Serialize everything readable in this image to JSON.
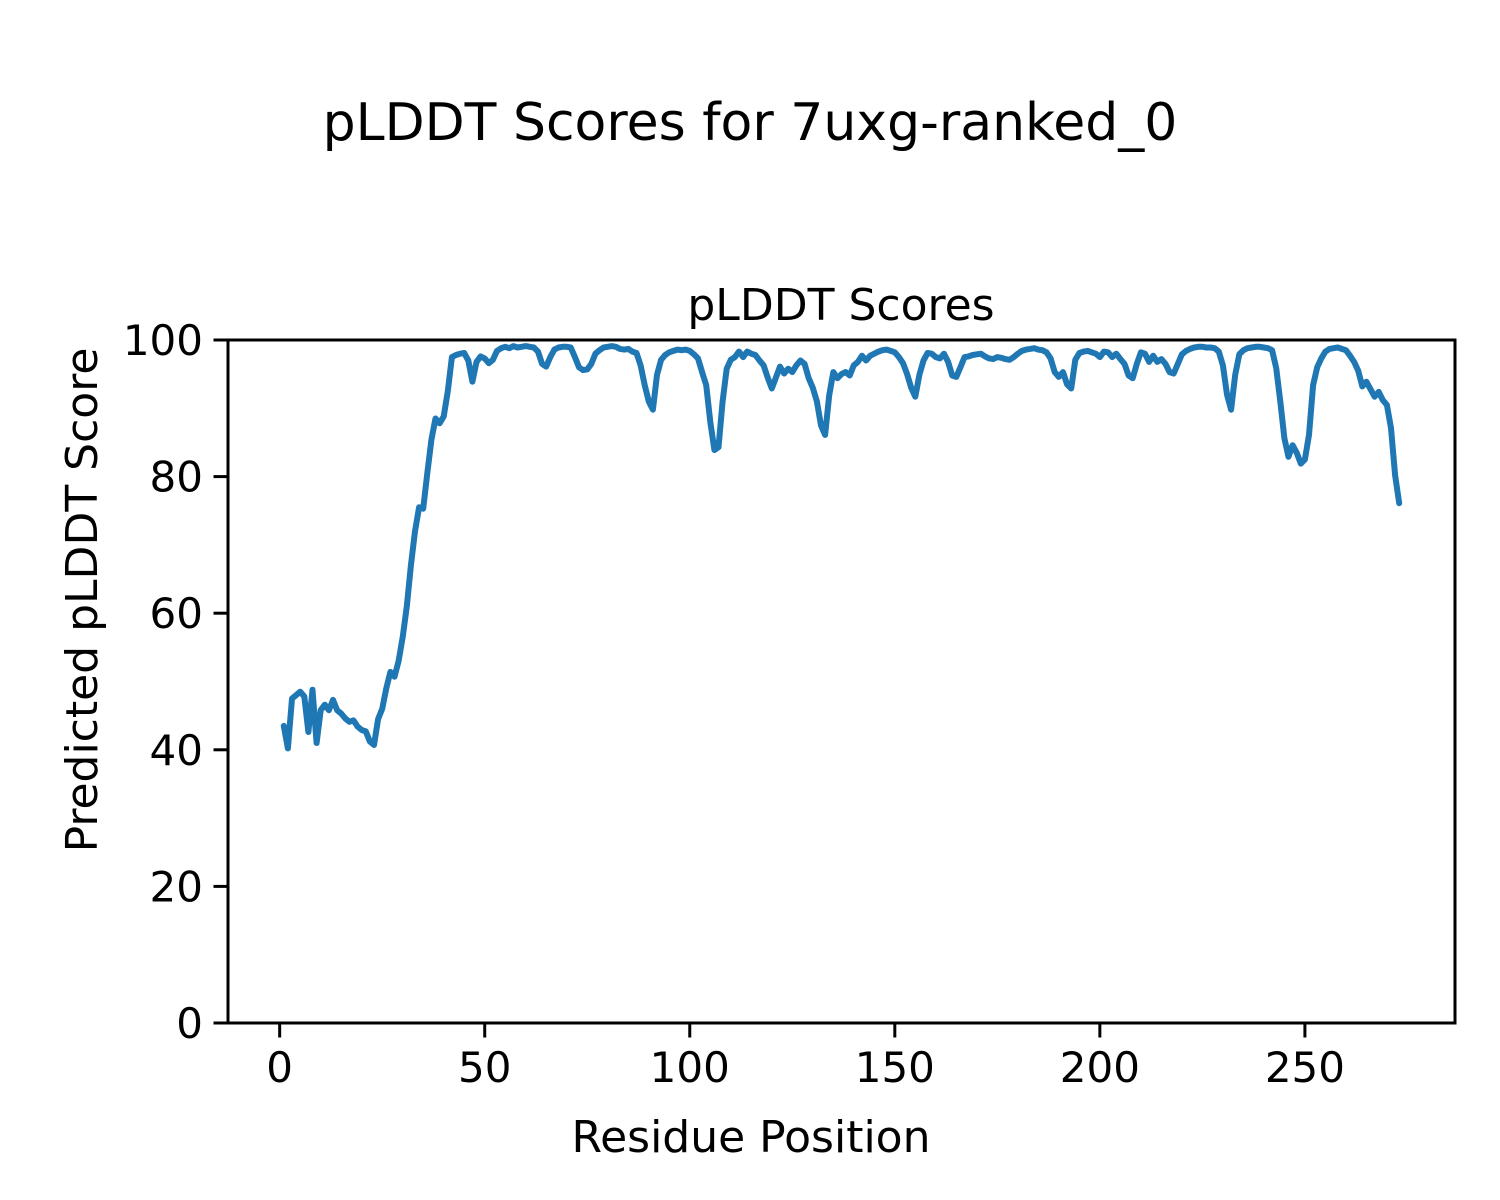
{
  "figure": {
    "background": "#ffffff"
  },
  "chart_data": {
    "type": "line",
    "title": "pLDDT Scores for 7uxg-ranked_0",
    "axes_title": "pLDDT Scores",
    "xlabel": "Residue Position",
    "ylabel": "Predicted pLDDT Score",
    "x_ticks": [
      0,
      50,
      100,
      150,
      200,
      250
    ],
    "y_ticks": [
      0,
      20,
      40,
      60,
      80,
      100
    ],
    "xlim": [
      -12.6,
      286.6
    ],
    "ylim": [
      0,
      100
    ],
    "grid": false,
    "legend": "none",
    "line_color": "#1f77b4",
    "axis_color": "#000000",
    "series": [
      {
        "name": "pLDDT",
        "x_start": 1,
        "x_step": 1,
        "values": [
          43.5,
          40.2,
          47.5,
          48.0,
          48.5,
          47.8,
          42.6,
          48.8,
          41.0,
          45.8,
          46.6,
          45.8,
          47.3,
          45.8,
          45.3,
          44.6,
          44.1,
          44.3,
          43.4,
          42.9,
          42.7,
          41.2,
          40.7,
          44.5,
          46.0,
          49.0,
          51.4,
          50.7,
          53.0,
          56.5,
          61.0,
          67.0,
          72.0,
          75.5,
          75.3,
          80.5,
          85.4,
          88.5,
          87.8,
          88.8,
          92.5,
          97.5,
          97.8,
          98.0,
          98.1,
          97.0,
          93.9,
          96.8,
          97.6,
          97.3,
          96.6,
          97.1,
          98.4,
          98.8,
          99.0,
          98.8,
          99.1,
          98.9,
          99.0,
          99.1,
          99.0,
          98.9,
          98.3,
          96.5,
          96.1,
          97.5,
          98.6,
          98.9,
          99.0,
          99.0,
          98.9,
          97.5,
          96.0,
          95.6,
          95.7,
          96.5,
          98.0,
          98.5,
          98.9,
          99.0,
          99.1,
          99.0,
          98.7,
          98.6,
          98.7,
          98.3,
          98.1,
          96.3,
          93.4,
          91.0,
          89.8,
          94.9,
          97.1,
          97.8,
          98.2,
          98.4,
          98.6,
          98.5,
          98.6,
          98.4,
          97.9,
          97.3,
          95.3,
          93.4,
          88.0,
          83.9,
          84.3,
          91.0,
          95.8,
          97.1,
          97.5,
          98.3,
          97.5,
          98.3,
          98.0,
          97.8,
          97.0,
          96.3,
          94.5,
          92.9,
          94.5,
          96.1,
          95.1,
          95.8,
          95.3,
          96.3,
          97.0,
          96.5,
          94.4,
          93.0,
          91.0,
          87.5,
          86.1,
          91.9,
          95.3,
          94.4,
          95.0,
          95.3,
          94.8,
          96.3,
          96.8,
          97.7,
          97.0,
          97.7,
          98.0,
          98.3,
          98.5,
          98.6,
          98.4,
          98.2,
          97.5,
          96.6,
          95.0,
          93.0,
          91.7,
          94.9,
          97.0,
          98.1,
          98.0,
          97.5,
          97.3,
          98.0,
          96.8,
          94.8,
          94.6,
          96.0,
          97.5,
          97.6,
          97.8,
          97.9,
          98.0,
          97.6,
          97.3,
          97.2,
          97.5,
          97.4,
          97.2,
          97.1,
          97.5,
          98.0,
          98.4,
          98.6,
          98.7,
          98.8,
          98.6,
          98.5,
          98.2,
          97.3,
          95.3,
          94.6,
          95.3,
          93.5,
          92.9,
          97.1,
          98.1,
          98.3,
          98.4,
          98.2,
          98.0,
          97.5,
          98.3,
          98.2,
          97.5,
          98.0,
          97.2,
          96.5,
          94.8,
          94.4,
          96.5,
          98.2,
          98.0,
          96.8,
          97.7,
          96.8,
          97.2,
          96.5,
          95.3,
          95.1,
          96.5,
          97.9,
          98.4,
          98.7,
          98.9,
          99.0,
          99.0,
          98.9,
          98.9,
          98.8,
          98.3,
          96.3,
          92.0,
          89.8,
          94.9,
          97.9,
          98.5,
          98.8,
          98.9,
          99.0,
          99.0,
          98.9,
          98.8,
          98.5,
          95.9,
          91.0,
          85.6,
          82.9,
          84.6,
          83.5,
          81.9,
          82.5,
          86.1,
          93.4,
          96.0,
          97.3,
          98.3,
          98.7,
          98.8,
          98.9,
          98.7,
          98.5,
          97.7,
          96.8,
          95.5,
          93.2,
          93.9,
          92.8,
          91.7,
          92.4,
          91.2,
          90.5,
          87.1,
          80.2,
          76.1
        ]
      }
    ]
  }
}
